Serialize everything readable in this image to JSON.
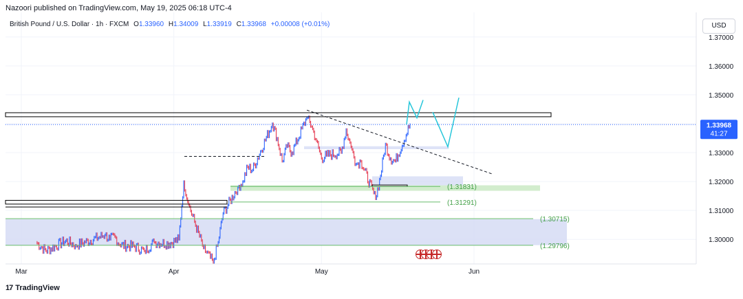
{
  "publisher": "Nazoori published on TradingView.com, May 19, 2025 06:18 UTC-4",
  "legend": {
    "symbol": "British Pound / U.S. Dollar · 1h · FXCM",
    "open_label": "O",
    "open": "1.33960",
    "high_label": "H",
    "high": "1.34009",
    "low_label": "L",
    "low": "1.33919",
    "close_label": "C",
    "close": "1.33968",
    "change": "+0.00008 (+0.01%)"
  },
  "currency_button": "USD",
  "footer": {
    "logo_mark": "17",
    "logo_text": "TradingView"
  },
  "colors": {
    "up": "#2962ff",
    "down": "#e53950",
    "price_line": "#2962ff",
    "support_line": "#66bb6a",
    "zone_blue": "#d6dcf5",
    "zone_green": "#cdebc8",
    "projection": "#26c6da"
  },
  "chart_data": {
    "type": "line",
    "symbol": "British Pound / U.S. Dollar",
    "interval": "1h",
    "ylim": [
      1.2915,
      1.3785
    ],
    "x_ticks": [
      {
        "label": "Mar",
        "date": "2025-03-01"
      },
      {
        "label": "Apr",
        "date": "2025-04-01"
      },
      {
        "label": "May",
        "date": "2025-05-01"
      },
      {
        "label": "Jun",
        "date": "2025-06-01"
      }
    ],
    "y_ticks": [
      "1.37000",
      "1.36000",
      "1.35000",
      "1.34000",
      "1.33000",
      "1.32000",
      "1.31000",
      "1.30000"
    ],
    "current_price": {
      "value": 1.33968,
      "label": "1.33968",
      "countdown": "41:27"
    },
    "price_path": [
      [
        "2025-03-04",
        1.299
      ],
      [
        "2025-03-06",
        1.296
      ],
      [
        "2025-03-10",
        1.2995
      ],
      [
        "2025-03-12",
        1.298
      ],
      [
        "2025-03-14",
        1.299
      ],
      [
        "2025-03-18",
        1.3015
      ],
      [
        "2025-03-19",
        1.3
      ],
      [
        "2025-03-20",
        1.301
      ],
      [
        "2025-03-21",
        1.298
      ],
      [
        "2025-03-24",
        1.2975
      ],
      [
        "2025-03-26",
        1.296
      ],
      [
        "2025-03-28",
        1.299
      ],
      [
        "2025-03-31",
        1.2985
      ],
      [
        "2025-04-02",
        1.3
      ],
      [
        "2025-04-03",
        1.32
      ],
      [
        "2025-04-04",
        1.312
      ],
      [
        "2025-04-07",
        1.297
      ],
      [
        "2025-04-09",
        1.292
      ],
      [
        "2025-04-10",
        1.299
      ],
      [
        "2025-04-11",
        1.309
      ],
      [
        "2025-04-14",
        1.318
      ],
      [
        "2025-04-15",
        1.32
      ],
      [
        "2025-04-16",
        1.325
      ],
      [
        "2025-04-17",
        1.324
      ],
      [
        "2025-04-18",
        1.328
      ],
      [
        "2025-04-21",
        1.34
      ],
      [
        "2025-04-22",
        1.335
      ],
      [
        "2025-04-23",
        1.327
      ],
      [
        "2025-04-24",
        1.332
      ],
      [
        "2025-04-25",
        1.33
      ],
      [
        "2025-04-28",
        1.342
      ],
      [
        "2025-04-29",
        1.339
      ],
      [
        "2025-04-30",
        1.334
      ],
      [
        "2025-05-01",
        1.328
      ],
      [
        "2025-05-02",
        1.329
      ],
      [
        "2025-05-05",
        1.33
      ],
      [
        "2025-05-06",
        1.338
      ],
      [
        "2025-05-07",
        1.332
      ],
      [
        "2025-05-08",
        1.326
      ],
      [
        "2025-05-09",
        1.327
      ],
      [
        "2025-05-12",
        1.314
      ],
      [
        "2025-05-13",
        1.322
      ],
      [
        "2025-05-14",
        1.333
      ],
      [
        "2025-05-15",
        1.328
      ],
      [
        "2025-05-16",
        1.327
      ],
      [
        "2025-05-19",
        1.3397
      ]
    ],
    "horizontal_levels": [
      {
        "label": "(1.31831)",
        "value": 1.31831
      },
      {
        "label": "(1.31291)",
        "value": 1.31291
      },
      {
        "label": "(1.30715)",
        "value": 1.30715
      },
      {
        "label": "(1.29796)",
        "value": 1.29796
      }
    ]
  }
}
